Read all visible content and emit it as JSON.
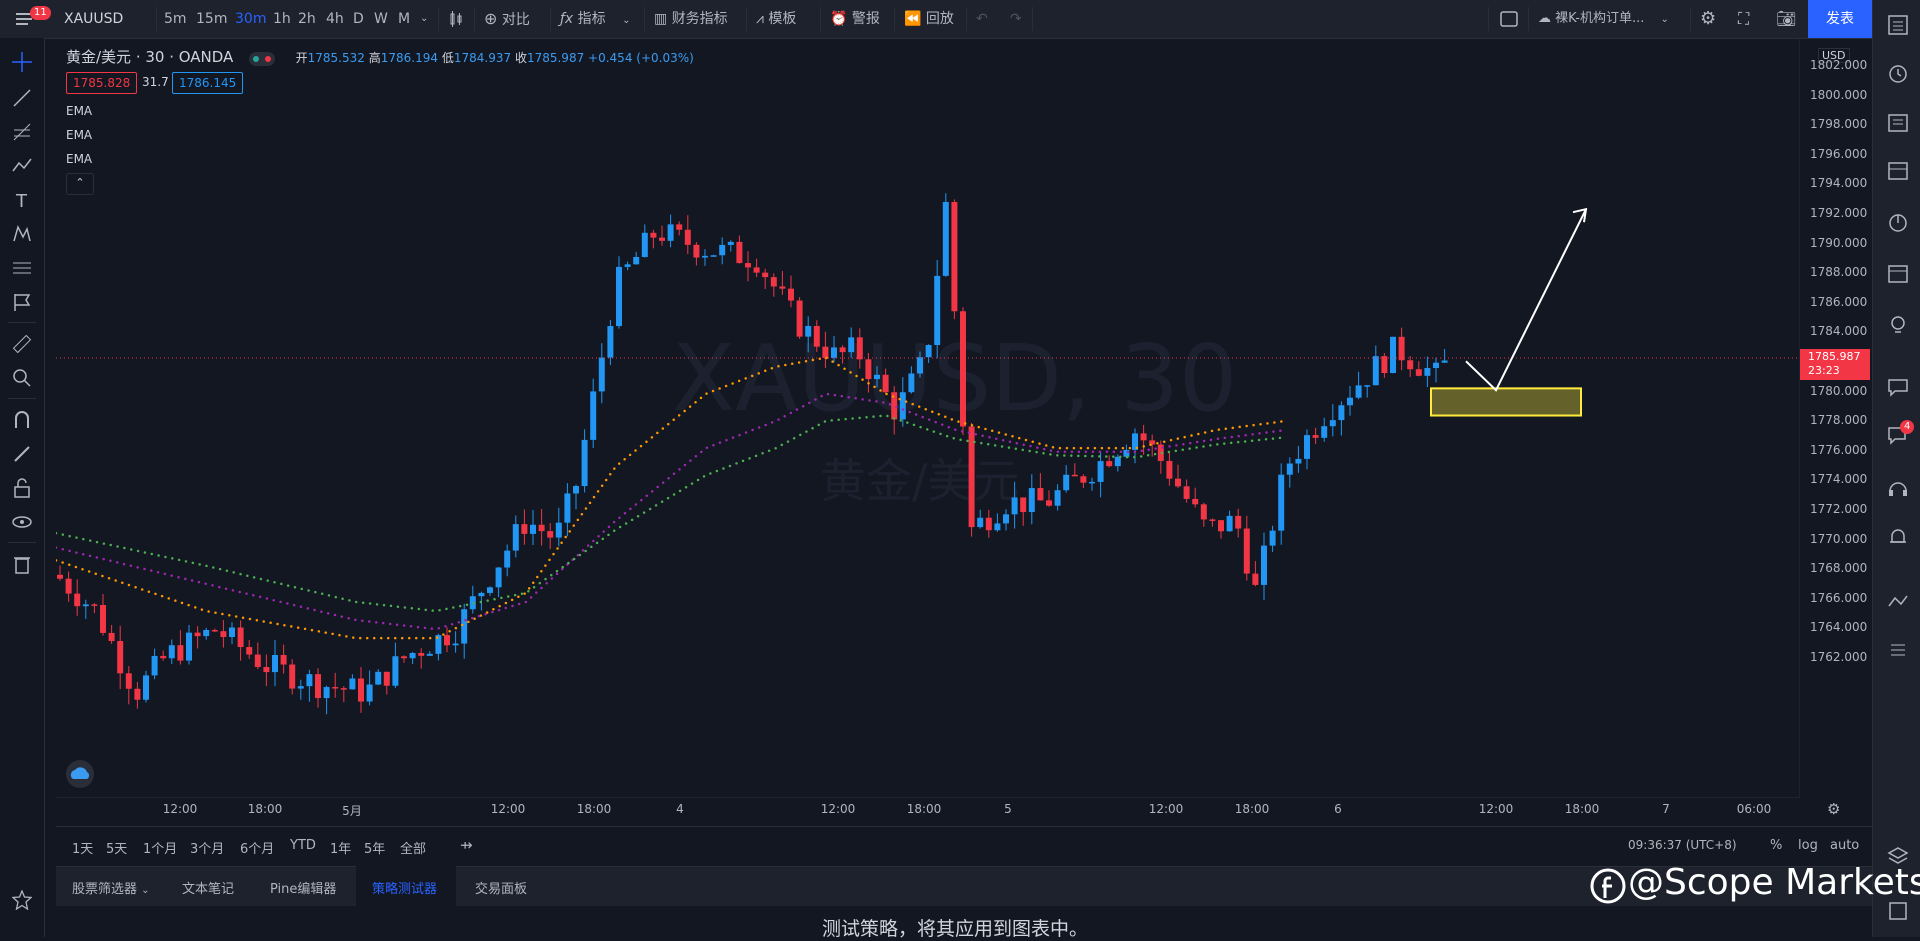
{
  "toolbar": {
    "menu_badge": "11",
    "symbol": "XAUUSD",
    "intervals": [
      "5m",
      "15m",
      "30m",
      "1h",
      "2h",
      "4h",
      "D",
      "W",
      "M"
    ],
    "active_interval": "30m",
    "compare": "对比",
    "indicators": "指标",
    "financials": "财务指标",
    "templates": "模板",
    "alert": "警报",
    "replay": "回放",
    "layout_name": "裸K-机构订单...",
    "publish": "发表"
  },
  "legend": {
    "title": "黄金/美元 · 30 · OANDA",
    "open_label": "开",
    "open": "1785.532",
    "high_label": "高",
    "high": "1786.194",
    "low_label": "低",
    "low": "1784.937",
    "close_label": "收",
    "close": "1785.987",
    "change": "+0.454 (+0.03%)",
    "bid": "1785.828",
    "spread": "31.7",
    "ask": "1786.145",
    "indicators": [
      "EMA",
      "EMA",
      "EMA"
    ]
  },
  "watermark": {
    "symbol": "XAUUSD, 30",
    "name": "黄金/美元"
  },
  "price_axis": {
    "currency": "USD",
    "current_price": "1785.987",
    "countdown": "23:23",
    "ticks": [
      "1802.000",
      "1800.000",
      "1798.000",
      "1796.000",
      "1794.000",
      "1792.000",
      "1790.000",
      "1788.000",
      "1786.000",
      "1784.000",
      "1782.000",
      "1780.000",
      "1778.000",
      "1776.000",
      "1774.000",
      "1772.000",
      "1770.000",
      "1768.000",
      "1766.000",
      "1764.000",
      "1762.000"
    ]
  },
  "time_axis": {
    "ticks": [
      "12:00",
      "18:00",
      "5月",
      "12:00",
      "18:00",
      "4",
      "12:00",
      "18:00",
      "5",
      "12:00",
      "18:00",
      "6",
      "12:00",
      "18:00",
      "7",
      "06:00"
    ]
  },
  "ranges": [
    "1天",
    "5天",
    "1个月",
    "3个月",
    "6个月",
    "YTD",
    "1年",
    "5年",
    "全部"
  ],
  "clock": "09:36:37 (UTC+8)",
  "scale_opts": [
    "%",
    "log",
    "auto"
  ],
  "bottom_tabs": [
    "股票筛选器",
    "文本笔记",
    "Pine编辑器",
    "策略测试器",
    "交易面板"
  ],
  "active_tab": "策略测试器",
  "panel_message": "测试策略，将其应用到图表中。",
  "brand": "@Scope Markets",
  "right_badge": "4",
  "colors": {
    "up": "#2196f3",
    "down": "#f23645",
    "ema_fast": "#ff9800",
    "ema_mid": "#9c27b0",
    "ema_slow": "#4caf50",
    "zone": "#ffeb3b"
  }
}
